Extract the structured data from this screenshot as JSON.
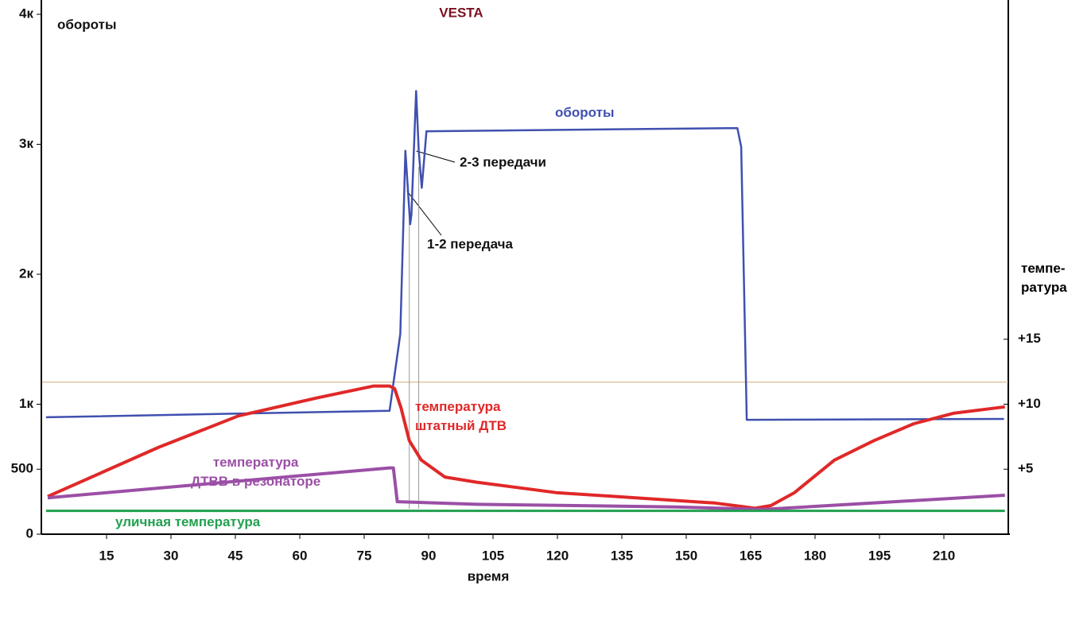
{
  "chart_data": {
    "type": "line",
    "title": "VESTA",
    "x_label": "время",
    "y_label": "обороты",
    "y2_label": "темпе-\nратура",
    "xlim": [
      0,
      225
    ],
    "xticks": [
      15,
      30,
      45,
      60,
      75,
      90,
      105,
      120,
      135,
      150,
      165,
      180,
      195,
      210
    ],
    "ylim": [
      0,
      4000
    ],
    "yticks": [
      0,
      500,
      {
        "value": 1000,
        "label": "1к"
      },
      {
        "value": 2000,
        "label": "2к"
      },
      {
        "value": 3000,
        "label": "3к"
      },
      {
        "value": 4000,
        "label": "4к"
      }
    ],
    "y2lim": [
      0,
      40
    ],
    "y2ticks": [
      {
        "value": 5,
        "label": "+5"
      },
      {
        "value": 10,
        "label": "+10"
      },
      {
        "value": 15,
        "label": "+15"
      }
    ],
    "reference_line": {
      "axis": "y2",
      "value": 11.7,
      "color": "#d2aa80"
    },
    "series": [
      {
        "name": "обороты",
        "color": "#4050b0",
        "axis": "y",
        "x": [
          0.9,
          80.9,
          83.4,
          84.6,
          85.7,
          86.0,
          87.1,
          87.7,
          88.4,
          89.5,
          89.9,
          161.9,
          162.8,
          164.1,
          224
        ],
        "values": [
          900,
          950,
          1540,
          2950,
          2385,
          2460,
          3410,
          2950,
          2665,
          3100,
          3100,
          3125,
          2980,
          880,
          887
        ]
      },
      {
        "name": "температура\nштатный ДТВ",
        "color": "#e02828",
        "axis": "y2",
        "x": [
          1.3,
          27.2,
          45.7,
          64.2,
          77.2,
          80.9,
          82.1,
          83.6,
          85.5,
          88.3,
          93.8,
          101.2,
          119.7,
          138.2,
          156.7,
          166,
          169.7,
          175.2,
          184.5,
          193.7,
          203,
          212.2,
          224.2
        ],
        "values": [
          2.9,
          6.7,
          9.1,
          10.5,
          11.4,
          11.4,
          11.2,
          9.7,
          7.2,
          5.7,
          4.4,
          4.0,
          3.2,
          2.8,
          2.4,
          2.0,
          2.2,
          3.2,
          5.7,
          7.2,
          8.5,
          9.3,
          9.8
        ]
      },
      {
        "name": "температура\nДТВВ в резонаторе",
        "color": "#9b4fa6",
        "axis": "y2",
        "x": [
          1.3,
          80.9,
          81.8,
          82.7,
          101.2,
          147.5,
          167.8,
          224.2
        ],
        "values": [
          2.8,
          5.1,
          5.1,
          2.5,
          2.3,
          2.1,
          1.9,
          3.0
        ]
      },
      {
        "name": "уличная температура",
        "color": "#22a050",
        "axis": "y2",
        "x": [
          0.9,
          224.2
        ],
        "values": [
          1.8,
          1.8
        ]
      }
    ],
    "annotations": [
      {
        "text": "1-2 передача",
        "x": 85.5
      },
      {
        "text": "2-3 передачи",
        "x": 87.7
      }
    ]
  }
}
